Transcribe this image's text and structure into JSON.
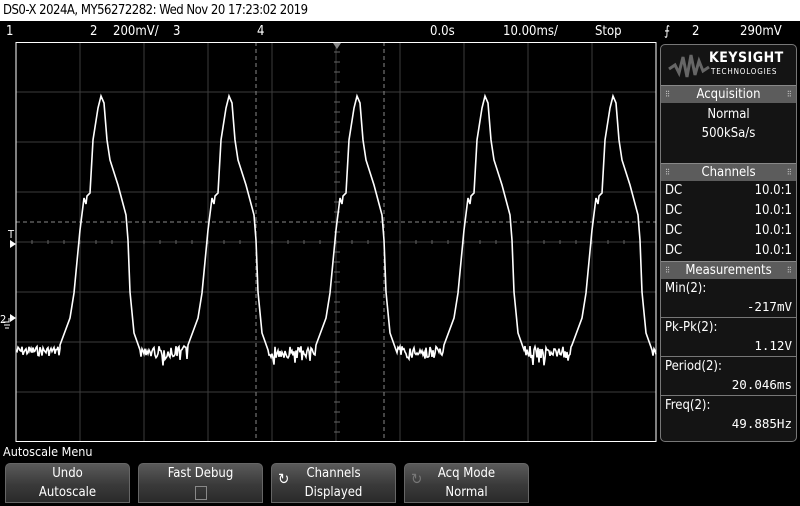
{
  "title": "DS0-X 2024A, MY56272282: Wed Nov 20 17:23:02 2019",
  "status": {
    "ch1": "1",
    "ch2": "2",
    "ch2_scale": "200mV/",
    "ch3": "3",
    "ch4": "4",
    "delay": "0.0s",
    "timebase": "10.00ms/",
    "run_state": "Stop",
    "trigger_icon": "rising-edge-icon",
    "trigger_source": "2",
    "trigger_level": "290mV"
  },
  "panel": {
    "brand": "KEYSIGHT",
    "brand_sub": "TECHNOLOGIES",
    "acquisition": {
      "header": "Acquisition",
      "mode": "Normal",
      "rate": "500kSa/s"
    },
    "channels": {
      "header": "Channels",
      "rows": [
        {
          "coupling": "DC",
          "probe": "10.0:1"
        },
        {
          "coupling": "DC",
          "probe": "10.0:1"
        },
        {
          "coupling": "DC",
          "probe": "10.0:1"
        },
        {
          "coupling": "DC",
          "probe": "10.0:1"
        }
      ]
    },
    "measurements": {
      "header": "Measurements",
      "items": [
        {
          "name": "Min(2):",
          "value": "-217mV"
        },
        {
          "name": "Pk-Pk(2):",
          "value": "1.12V"
        },
        {
          "name": "Period(2):",
          "value": "20.046ms"
        },
        {
          "name": "Freq(2):",
          "value": "49.885Hz"
        }
      ]
    }
  },
  "screen": {
    "trigger_marker": "T",
    "ground_marker": "2",
    "trace_color": "#ffffff",
    "grid_color": "#3c3c3c"
  },
  "menu": {
    "title": "Autoscale Menu",
    "buttons": [
      {
        "line1": "Undo",
        "line2": "Autoscale"
      },
      {
        "line1": "Fast Debug",
        "checked": false
      },
      {
        "line1": "Channels",
        "line2": "Displayed",
        "icon": "cycle-icon"
      },
      {
        "line1": "Acq Mode",
        "line2": "Normal",
        "icon": "cycle-icon"
      }
    ]
  }
}
